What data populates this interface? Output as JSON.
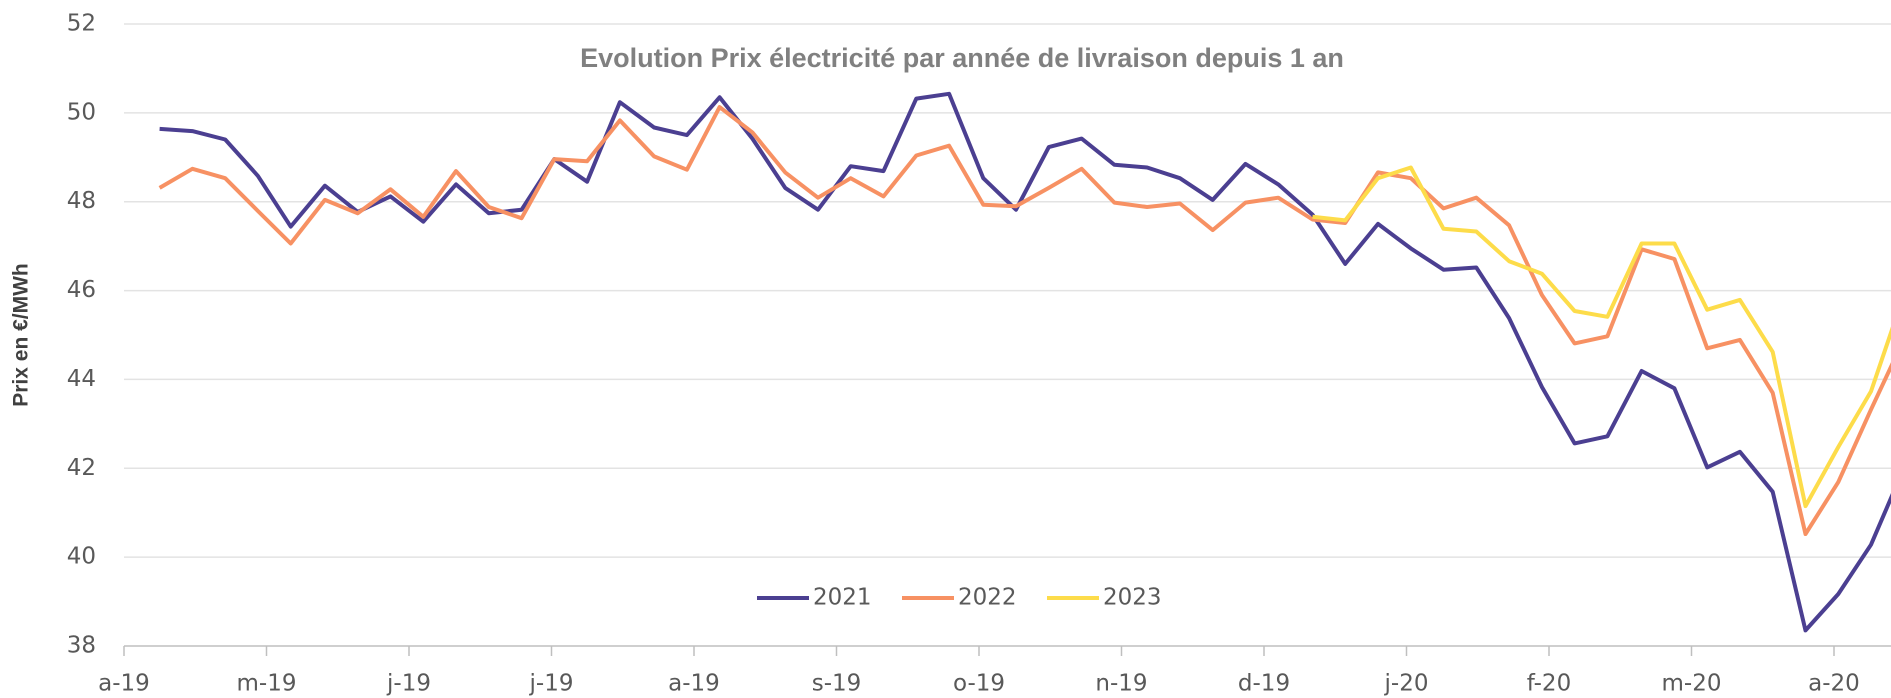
{
  "chart_data": {
    "type": "line",
    "title": "Evolution Prix électricité par année de livraison depuis 1 an",
    "y_label": "Prix en €/MWh",
    "x": [
      0.25,
      0.48,
      0.71,
      0.94,
      1.17,
      1.41,
      1.64,
      1.87,
      2.1,
      2.33,
      2.56,
      2.79,
      3.02,
      3.25,
      3.48,
      3.72,
      3.95,
      4.18,
      4.41,
      4.64,
      4.87,
      5.1,
      5.33,
      5.56,
      5.79,
      6.03,
      6.26,
      6.49,
      6.72,
      6.95,
      7.18,
      7.41,
      7.64,
      7.87,
      8.1,
      8.34,
      8.57,
      8.8,
      9.03,
      9.26,
      9.49,
      9.72,
      9.95,
      10.18,
      10.41,
      10.65,
      10.88,
      11.11,
      11.34,
      11.57,
      11.8,
      12.03,
      12.26,
      12.49
    ],
    "xlim": [
      0,
      12.4
    ],
    "xticks": [
      {
        "value": 0,
        "label": "a-19"
      },
      {
        "value": 1,
        "label": "m-19"
      },
      {
        "value": 2,
        "label": "j-19"
      },
      {
        "value": 3,
        "label": "j-19"
      },
      {
        "value": 4,
        "label": "a-19"
      },
      {
        "value": 5,
        "label": "s-19"
      },
      {
        "value": 6,
        "label": "o-19"
      },
      {
        "value": 7,
        "label": "n-19"
      },
      {
        "value": 8,
        "label": "d-19"
      },
      {
        "value": 9,
        "label": "j-20"
      },
      {
        "value": 10,
        "label": "f-20"
      },
      {
        "value": 11,
        "label": "m-20"
      },
      {
        "value": 12,
        "label": "a-20"
      }
    ],
    "ylim": [
      38,
      52
    ],
    "yticks": [
      38,
      40,
      42,
      44,
      46,
      48,
      50,
      52
    ],
    "grid": true,
    "legend": "bottom",
    "series": [
      {
        "name": "2021",
        "color": "#4b3f91",
        "values": [
          49.64,
          49.59,
          49.4,
          48.58,
          47.44,
          48.36,
          47.77,
          48.12,
          47.55,
          48.39,
          47.74,
          47.82,
          48.96,
          48.45,
          50.24,
          49.67,
          49.5,
          50.35,
          49.42,
          48.31,
          47.82,
          48.8,
          48.69,
          50.32,
          50.43,
          48.53,
          47.82,
          49.23,
          49.42,
          48.83,
          48.77,
          48.53,
          48.04,
          48.85,
          48.39,
          47.71,
          46.6,
          47.5,
          46.95,
          46.47,
          46.52,
          45.38,
          43.83,
          42.56,
          42.72,
          44.19,
          43.8,
          42.02,
          42.37,
          41.47,
          38.35,
          39.17,
          40.28,
          42.0
        ]
      },
      {
        "name": "2022",
        "color": "#f79163",
        "values": [
          48.31,
          48.74,
          48.53,
          47.79,
          47.06,
          48.04,
          47.74,
          48.28,
          47.66,
          48.69,
          47.88,
          47.63,
          48.96,
          48.91,
          49.83,
          49.02,
          48.72,
          50.13,
          49.56,
          48.66,
          48.09,
          48.53,
          48.12,
          49.04,
          49.26,
          47.93,
          47.9,
          48.31,
          48.74,
          47.98,
          47.88,
          47.96,
          47.36,
          47.98,
          48.09,
          47.6,
          47.52,
          48.66,
          48.53,
          47.85,
          48.09,
          47.47,
          45.9,
          44.81,
          44.97,
          46.93,
          46.71,
          44.7,
          44.89,
          43.7,
          40.52,
          41.69,
          43.32,
          44.9
        ]
      },
      {
        "name": "2023",
        "color": "#fddc4a",
        "values": [
          null,
          null,
          null,
          null,
          null,
          null,
          null,
          null,
          null,
          null,
          null,
          null,
          null,
          null,
          null,
          null,
          null,
          null,
          null,
          null,
          null,
          null,
          null,
          null,
          null,
          null,
          null,
          null,
          null,
          null,
          null,
          null,
          null,
          null,
          null,
          47.66,
          47.58,
          48.53,
          48.77,
          47.39,
          47.33,
          46.66,
          46.38,
          45.54,
          45.41,
          47.06,
          47.06,
          45.57,
          45.79,
          44.62,
          41.15,
          42.48,
          43.73,
          45.9
        ]
      }
    ]
  }
}
